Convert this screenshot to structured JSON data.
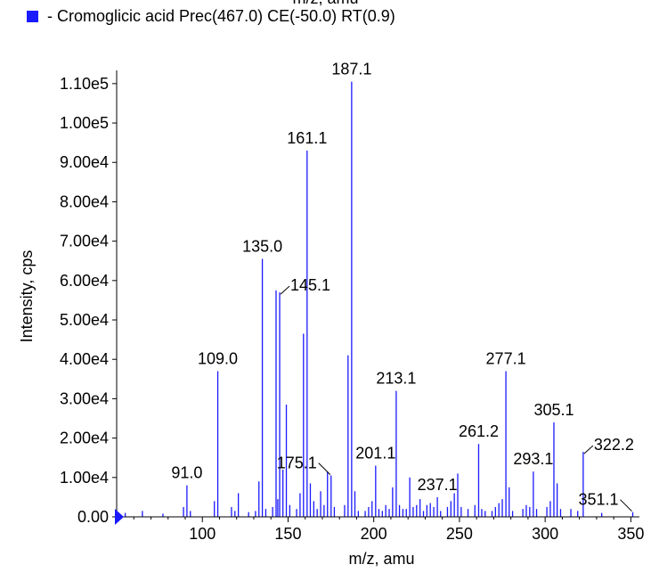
{
  "header": {
    "top_axis_label": "m/z, amu",
    "legend_label": "- Cromoglicic acid Prec(467.0) CE(-50.0) RT(0.9)",
    "legend_color": "#1a1aff"
  },
  "chart_data": {
    "type": "bar",
    "xlabel": "m/z, amu",
    "ylabel": "Intensity, cps",
    "xlim": [
      50,
      355
    ],
    "ylim": [
      0,
      112000
    ],
    "x_ticks": [
      {
        "v": 100,
        "label": "100"
      },
      {
        "v": 150,
        "label": "150"
      },
      {
        "v": 200,
        "label": "200"
      },
      {
        "v": 250,
        "label": "250"
      },
      {
        "v": 300,
        "label": "300"
      },
      {
        "v": 350,
        "label": "350"
      }
    ],
    "y_ticks": [
      {
        "v": 0,
        "label": "0.00"
      },
      {
        "v": 10000,
        "label": "1.00e4"
      },
      {
        "v": 20000,
        "label": "2.00e4"
      },
      {
        "v": 30000,
        "label": "3.00e4"
      },
      {
        "v": 40000,
        "label": "4.00e4"
      },
      {
        "v": 50000,
        "label": "5.00e4"
      },
      {
        "v": 60000,
        "label": "6.00e4"
      },
      {
        "v": 70000,
        "label": "7.00e4"
      },
      {
        "v": 80000,
        "label": "8.00e4"
      },
      {
        "v": 90000,
        "label": "9.00e4"
      },
      {
        "v": 100000,
        "label": "1.00e5"
      },
      {
        "v": 110000,
        "label": "1.10e5"
      }
    ],
    "color": "#1a1aff",
    "peaks": [
      {
        "x": 55.0,
        "y": 1000
      },
      {
        "x": 65.0,
        "y": 1500
      },
      {
        "x": 77.0,
        "y": 800
      },
      {
        "x": 89.0,
        "y": 2500
      },
      {
        "x": 91.0,
        "y": 8000
      },
      {
        "x": 93.0,
        "y": 1500
      },
      {
        "x": 107.0,
        "y": 4000
      },
      {
        "x": 109.0,
        "y": 37000
      },
      {
        "x": 117.0,
        "y": 2500
      },
      {
        "x": 119.0,
        "y": 1500
      },
      {
        "x": 121.0,
        "y": 6000
      },
      {
        "x": 127.0,
        "y": 1200
      },
      {
        "x": 131.0,
        "y": 1500
      },
      {
        "x": 133.0,
        "y": 9000
      },
      {
        "x": 135.0,
        "y": 65500
      },
      {
        "x": 137.0,
        "y": 2000
      },
      {
        "x": 141.0,
        "y": 2500
      },
      {
        "x": 143.0,
        "y": 57500
      },
      {
        "x": 144.0,
        "y": 4500
      },
      {
        "x": 145.1,
        "y": 57000
      },
      {
        "x": 147.0,
        "y": 12000
      },
      {
        "x": 149.0,
        "y": 28500
      },
      {
        "x": 151.0,
        "y": 3000
      },
      {
        "x": 155.0,
        "y": 2000
      },
      {
        "x": 157.0,
        "y": 6000
      },
      {
        "x": 159.0,
        "y": 46500
      },
      {
        "x": 161.1,
        "y": 93000
      },
      {
        "x": 163.0,
        "y": 8500
      },
      {
        "x": 165.0,
        "y": 4000
      },
      {
        "x": 167.0,
        "y": 2000
      },
      {
        "x": 169.0,
        "y": 6500
      },
      {
        "x": 171.0,
        "y": 3000
      },
      {
        "x": 173.0,
        "y": 11500
      },
      {
        "x": 175.1,
        "y": 10500
      },
      {
        "x": 177.0,
        "y": 2500
      },
      {
        "x": 183.0,
        "y": 3000
      },
      {
        "x": 185.0,
        "y": 41000
      },
      {
        "x": 187.1,
        "y": 110500
      },
      {
        "x": 189.0,
        "y": 6500
      },
      {
        "x": 191.0,
        "y": 1500
      },
      {
        "x": 195.0,
        "y": 1500
      },
      {
        "x": 197.0,
        "y": 2500
      },
      {
        "x": 199.0,
        "y": 4000
      },
      {
        "x": 201.1,
        "y": 13000
      },
      {
        "x": 203.0,
        "y": 2000
      },
      {
        "x": 205.0,
        "y": 1500
      },
      {
        "x": 207.0,
        "y": 3000
      },
      {
        "x": 209.0,
        "y": 2000
      },
      {
        "x": 211.0,
        "y": 7500
      },
      {
        "x": 213.1,
        "y": 32000
      },
      {
        "x": 215.0,
        "y": 3000
      },
      {
        "x": 217.0,
        "y": 2000
      },
      {
        "x": 219.0,
        "y": 2000
      },
      {
        "x": 221.0,
        "y": 10000
      },
      {
        "x": 223.0,
        "y": 2500
      },
      {
        "x": 225.0,
        "y": 3000
      },
      {
        "x": 227.0,
        "y": 4500
      },
      {
        "x": 229.0,
        "y": 1500
      },
      {
        "x": 231.0,
        "y": 3000
      },
      {
        "x": 233.0,
        "y": 3500
      },
      {
        "x": 235.0,
        "y": 2500
      },
      {
        "x": 237.1,
        "y": 5000
      },
      {
        "x": 239.0,
        "y": 1500
      },
      {
        "x": 243.0,
        "y": 2500
      },
      {
        "x": 245.0,
        "y": 4000
      },
      {
        "x": 247.0,
        "y": 6000
      },
      {
        "x": 249.0,
        "y": 11000
      },
      {
        "x": 251.0,
        "y": 2500
      },
      {
        "x": 255.0,
        "y": 2000
      },
      {
        "x": 259.0,
        "y": 3000
      },
      {
        "x": 261.2,
        "y": 18500
      },
      {
        "x": 263.0,
        "y": 2000
      },
      {
        "x": 265.0,
        "y": 1500
      },
      {
        "x": 269.0,
        "y": 1500
      },
      {
        "x": 271.0,
        "y": 2500
      },
      {
        "x": 273.0,
        "y": 3500
      },
      {
        "x": 275.0,
        "y": 4500
      },
      {
        "x": 277.1,
        "y": 37000
      },
      {
        "x": 279.0,
        "y": 7500
      },
      {
        "x": 281.0,
        "y": 1500
      },
      {
        "x": 287.0,
        "y": 2000
      },
      {
        "x": 289.0,
        "y": 3000
      },
      {
        "x": 291.0,
        "y": 2500
      },
      {
        "x": 293.1,
        "y": 11500
      },
      {
        "x": 295.0,
        "y": 2000
      },
      {
        "x": 301.0,
        "y": 2500
      },
      {
        "x": 303.0,
        "y": 4000
      },
      {
        "x": 305.1,
        "y": 24000
      },
      {
        "x": 307.0,
        "y": 8500
      },
      {
        "x": 309.0,
        "y": 2000
      },
      {
        "x": 315.0,
        "y": 2000
      },
      {
        "x": 319.0,
        "y": 1500
      },
      {
        "x": 322.2,
        "y": 16500
      },
      {
        "x": 333.0,
        "y": 1000
      },
      {
        "x": 351.1,
        "y": 1200
      }
    ],
    "labels": [
      {
        "x": 91.0,
        "y": 8000,
        "text": "91.0"
      },
      {
        "x": 109.0,
        "y": 37000,
        "text": "109.0"
      },
      {
        "x": 135.0,
        "y": 65500,
        "text": "135.0"
      },
      {
        "x": 145.1,
        "y": 57000,
        "text": "145.1",
        "callout": "right"
      },
      {
        "x": 161.1,
        "y": 93000,
        "text": "161.1"
      },
      {
        "x": 175.1,
        "y": 10500,
        "text": "175.1",
        "callout": "left"
      },
      {
        "x": 187.1,
        "y": 110500,
        "text": "187.1"
      },
      {
        "x": 201.1,
        "y": 13000,
        "text": "201.1"
      },
      {
        "x": 213.1,
        "y": 32000,
        "text": "213.1"
      },
      {
        "x": 237.1,
        "y": 5000,
        "text": "237.1"
      },
      {
        "x": 261.2,
        "y": 18500,
        "text": "261.2"
      },
      {
        "x": 277.1,
        "y": 37000,
        "text": "277.1"
      },
      {
        "x": 293.1,
        "y": 11500,
        "text": "293.1"
      },
      {
        "x": 305.1,
        "y": 24000,
        "text": "305.1"
      },
      {
        "x": 322.2,
        "y": 16500,
        "text": "322.2",
        "callout": "right"
      },
      {
        "x": 351.1,
        "y": 1200,
        "text": "351.1",
        "callout": "left"
      }
    ]
  }
}
